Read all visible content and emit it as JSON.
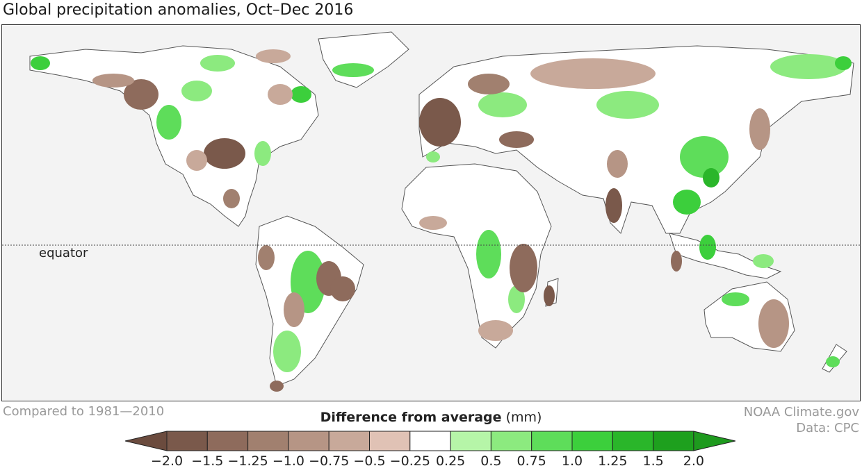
{
  "title": "Global precipitation anomalies, Oct–Dec 2016",
  "equator_label": "equator",
  "footer": {
    "baseline": "Compared to 1981—2010",
    "credit_line1": "NOAA Climate.gov",
    "credit_line2": "Data: CPC"
  },
  "legend": {
    "title": "Difference from average",
    "unit": "(mm)",
    "tick_labels": [
      "−2.0",
      "−1.5",
      "−1.25",
      "−1.0",
      "−0.75",
      "−0.5",
      "−0.25",
      "0.25",
      "0.5",
      "0.75",
      "1.0",
      "1.25",
      "1.5",
      "2.0"
    ],
    "colors": {
      "dry_arrow": "#6b4b3e",
      "bins": [
        "#7a594b",
        "#8e6b5c",
        "#a1806f",
        "#b69585",
        "#c8a99a",
        "#e0c2b5",
        "#ffffff",
        "#b6f5a8",
        "#8cea7f",
        "#5edd5a",
        "#3ccf3c",
        "#2ab62a",
        "#1ea01e"
      ],
      "wet_arrow": "#1e9a1e"
    }
  },
  "map": {
    "ocean_color": "#f3f3f3",
    "land_color": "#ffffff",
    "coast_color": "#555555",
    "wet_color": "#5edd5a",
    "dry_color": "#8e6b5c"
  }
}
